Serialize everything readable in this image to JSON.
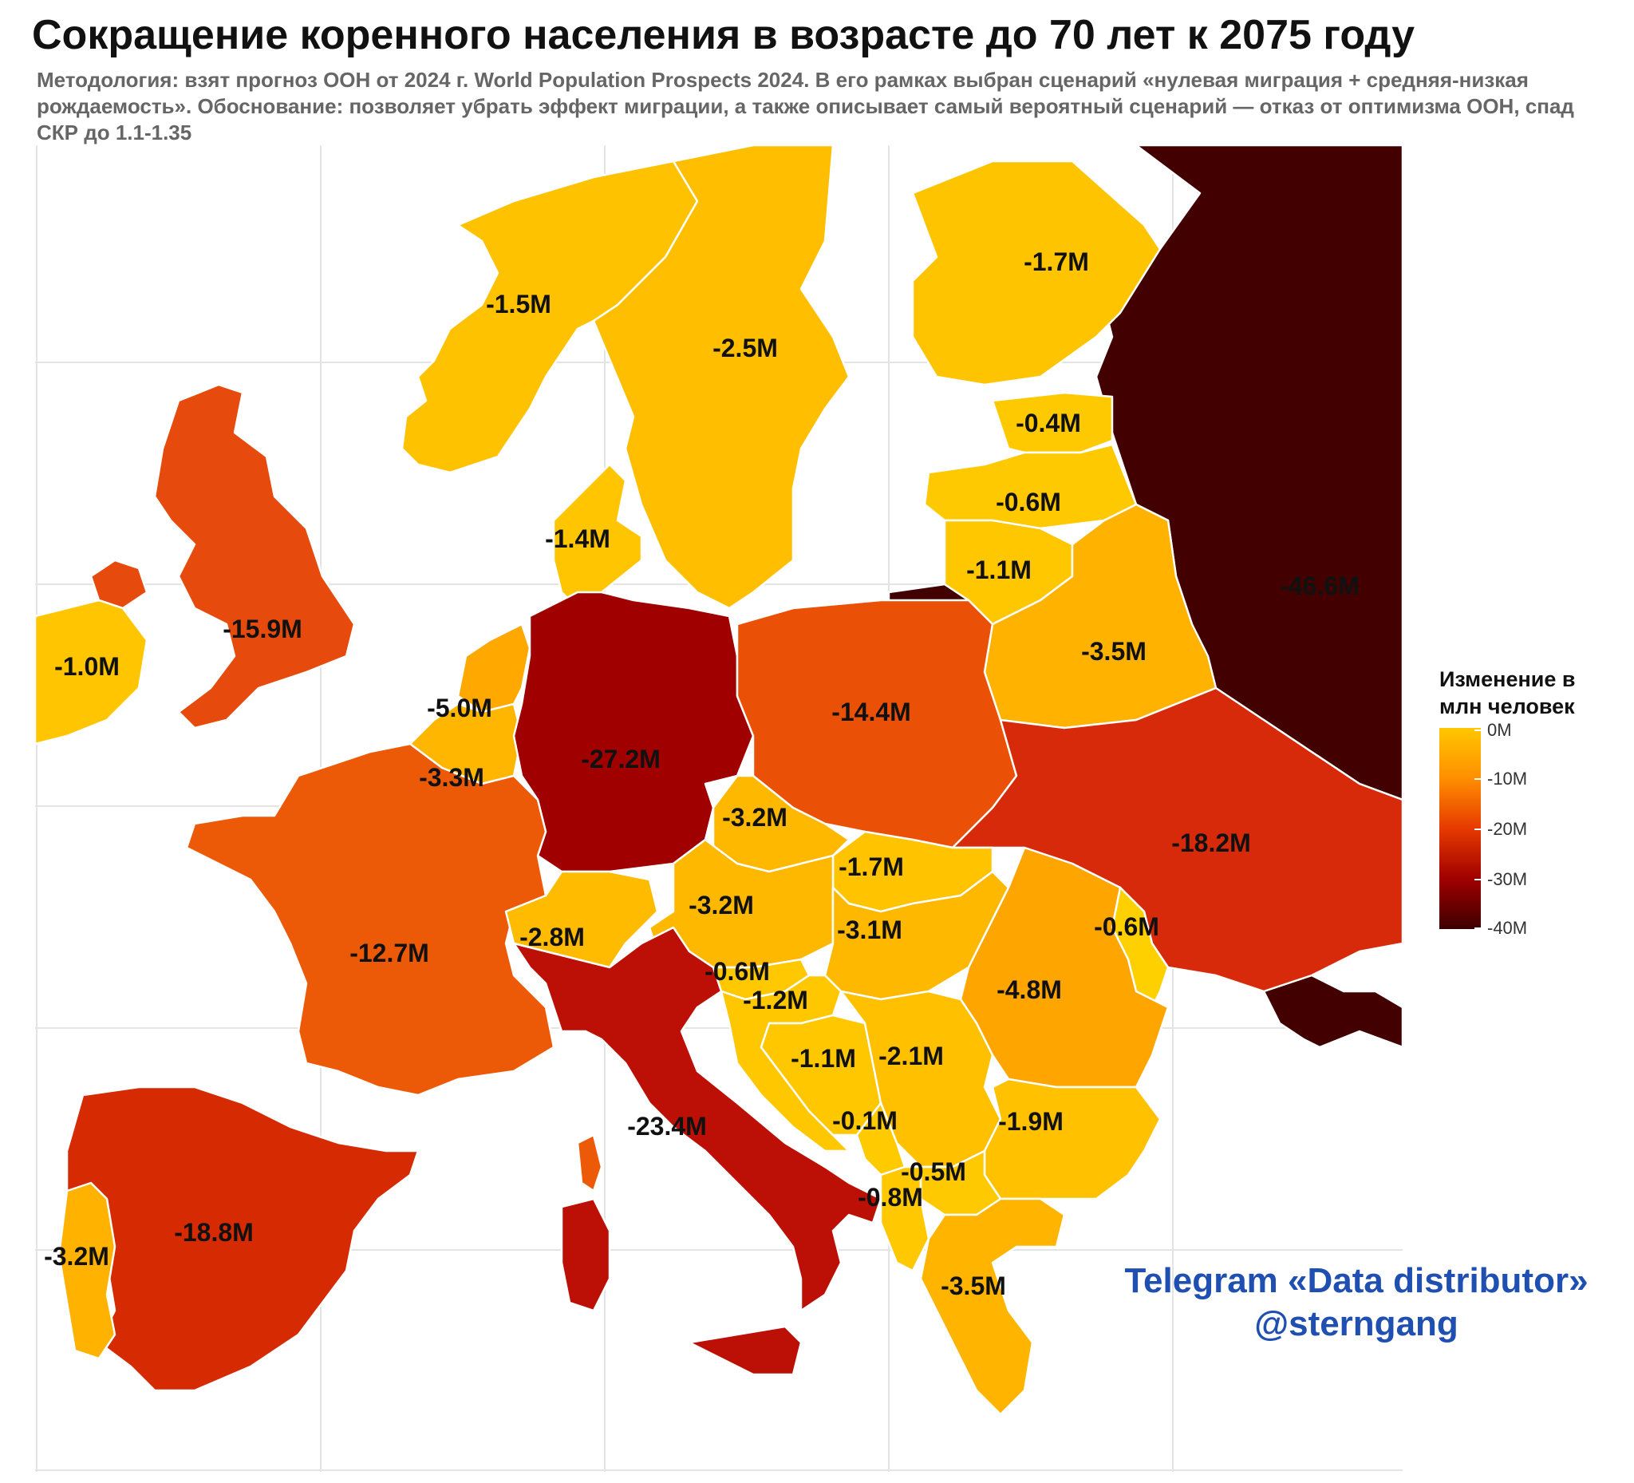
{
  "header": {
    "title": "Сокращение коренного населения в возрасте до 70 лет к 2075 году",
    "subtitle": "Методология: взят прогноз ООН от 2024 г. World Population Prospects 2024. В его рамках выбран сценарий «нулевая миграция + средняя-низкая рождаемость». Обоснование: позволяет убрать эффект миграции, а также описывает самый вероятный сценарий — отказ от оптимизма ООН, спад СКР до 1.1-1.35"
  },
  "legend": {
    "title": "Изменение в млн человек",
    "ticks": [
      "0M",
      "-10M",
      "-20M",
      "-30M",
      "-40M"
    ],
    "colors": [
      "#ffc700",
      "#ff8f00",
      "#e63a00",
      "#a00000",
      "#3d0000"
    ]
  },
  "regions": [
    {
      "name": "Норвегия",
      "label": "-1.5M",
      "value": -1.5,
      "color": "#ffc200"
    },
    {
      "name": "Швеция",
      "label": "-2.5M",
      "value": -2.5,
      "color": "#ffbf00"
    },
    {
      "name": "Финляндия",
      "label": "-1.7M",
      "value": -1.7,
      "color": "#ffc400"
    },
    {
      "name": "Россия",
      "label": "-46.6M",
      "value": -46.6,
      "color": "#420000"
    },
    {
      "name": "Эстония",
      "label": "-0.4M",
      "value": -0.4,
      "color": "#ffc900"
    },
    {
      "name": "Латвия",
      "label": "-0.6M",
      "value": -0.6,
      "color": "#ffc900"
    },
    {
      "name": "Литва",
      "label": "-1.1M",
      "value": -1.1,
      "color": "#ffc700"
    },
    {
      "name": "Дания",
      "label": "-1.4M",
      "value": -1.4,
      "color": "#ffc500"
    },
    {
      "name": "Великобритания",
      "label": "-15.9M",
      "value": -15.9,
      "color": "#e64a0c"
    },
    {
      "name": "Ирландия",
      "label": "-1.0M",
      "value": -1.0,
      "color": "#ffc600"
    },
    {
      "name": "Нидерланды",
      "label": "-5.0M",
      "value": -5.0,
      "color": "#ffa800"
    },
    {
      "name": "Бельгия",
      "label": "-3.3M",
      "value": -3.3,
      "color": "#ffb600"
    },
    {
      "name": "Германия",
      "label": "-27.2M",
      "value": -27.2,
      "color": "#a00000"
    },
    {
      "name": "Польша",
      "label": "-14.4M",
      "value": -14.4,
      "color": "#ea5006"
    },
    {
      "name": "Беларусь",
      "label": "-3.5M",
      "value": -3.5,
      "color": "#ffb300"
    },
    {
      "name": "Украина",
      "label": "-18.2M",
      "value": -18.2,
      "color": "#d72a0a"
    },
    {
      "name": "Чехия",
      "label": "-3.2M",
      "value": -3.2,
      "color": "#ffb800"
    },
    {
      "name": "Словакия",
      "label": "-1.7M",
      "value": -1.7,
      "color": "#ffc300"
    },
    {
      "name": "Австрия",
      "label": "-3.2M",
      "value": -3.2,
      "color": "#ffb800"
    },
    {
      "name": "Венгрия",
      "label": "-3.1M",
      "value": -3.1,
      "color": "#ffb800"
    },
    {
      "name": "Молдова",
      "label": "-0.6M",
      "value": -0.6,
      "color": "#ffd000"
    },
    {
      "name": "Румыния",
      "label": "-4.8M",
      "value": -4.8,
      "color": "#ffa500"
    },
    {
      "name": "Франция",
      "label": "-12.7M",
      "value": -12.7,
      "color": "#ec5a07"
    },
    {
      "name": "Швейцария",
      "label": "-2.8M",
      "value": -2.8,
      "color": "#ffbb00"
    },
    {
      "name": "Словения",
      "label": "-0.6M",
      "value": -0.6,
      "color": "#ffc800"
    },
    {
      "name": "Хорватия",
      "label": "-1.2M",
      "value": -1.2,
      "color": "#ffc700"
    },
    {
      "name": "Босния и Герцеговина",
      "label": "-1.1M",
      "value": -1.1,
      "color": "#ffc700"
    },
    {
      "name": "Сербия",
      "label": "-2.1M",
      "value": -2.1,
      "color": "#ffc000"
    },
    {
      "name": "Черногория",
      "label": "-0.1M",
      "value": -0.1,
      "color": "#ffca00"
    },
    {
      "name": "Болгария",
      "label": "-1.9M",
      "value": -1.9,
      "color": "#ffc100"
    },
    {
      "name": "Северная Македония",
      "label": "-0.5M",
      "value": -0.5,
      "color": "#ffc900"
    },
    {
      "name": "Албания",
      "label": "-0.8M",
      "value": -0.8,
      "color": "#ffc800"
    },
    {
      "name": "Италия",
      "label": "-23.4M",
      "value": -23.4,
      "color": "#bc0f06"
    },
    {
      "name": "Испания",
      "label": "-18.8M",
      "value": -18.8,
      "color": "#d52a02"
    },
    {
      "name": "Португалия",
      "label": "-3.2M",
      "value": -3.2,
      "color": "#ffb200"
    },
    {
      "name": "Греция",
      "label": "-3.5M",
      "value": -3.5,
      "color": "#ffb400"
    }
  ],
  "credit": {
    "line1": "Telegram «Data distributor»",
    "line2": "@sterngang"
  }
}
